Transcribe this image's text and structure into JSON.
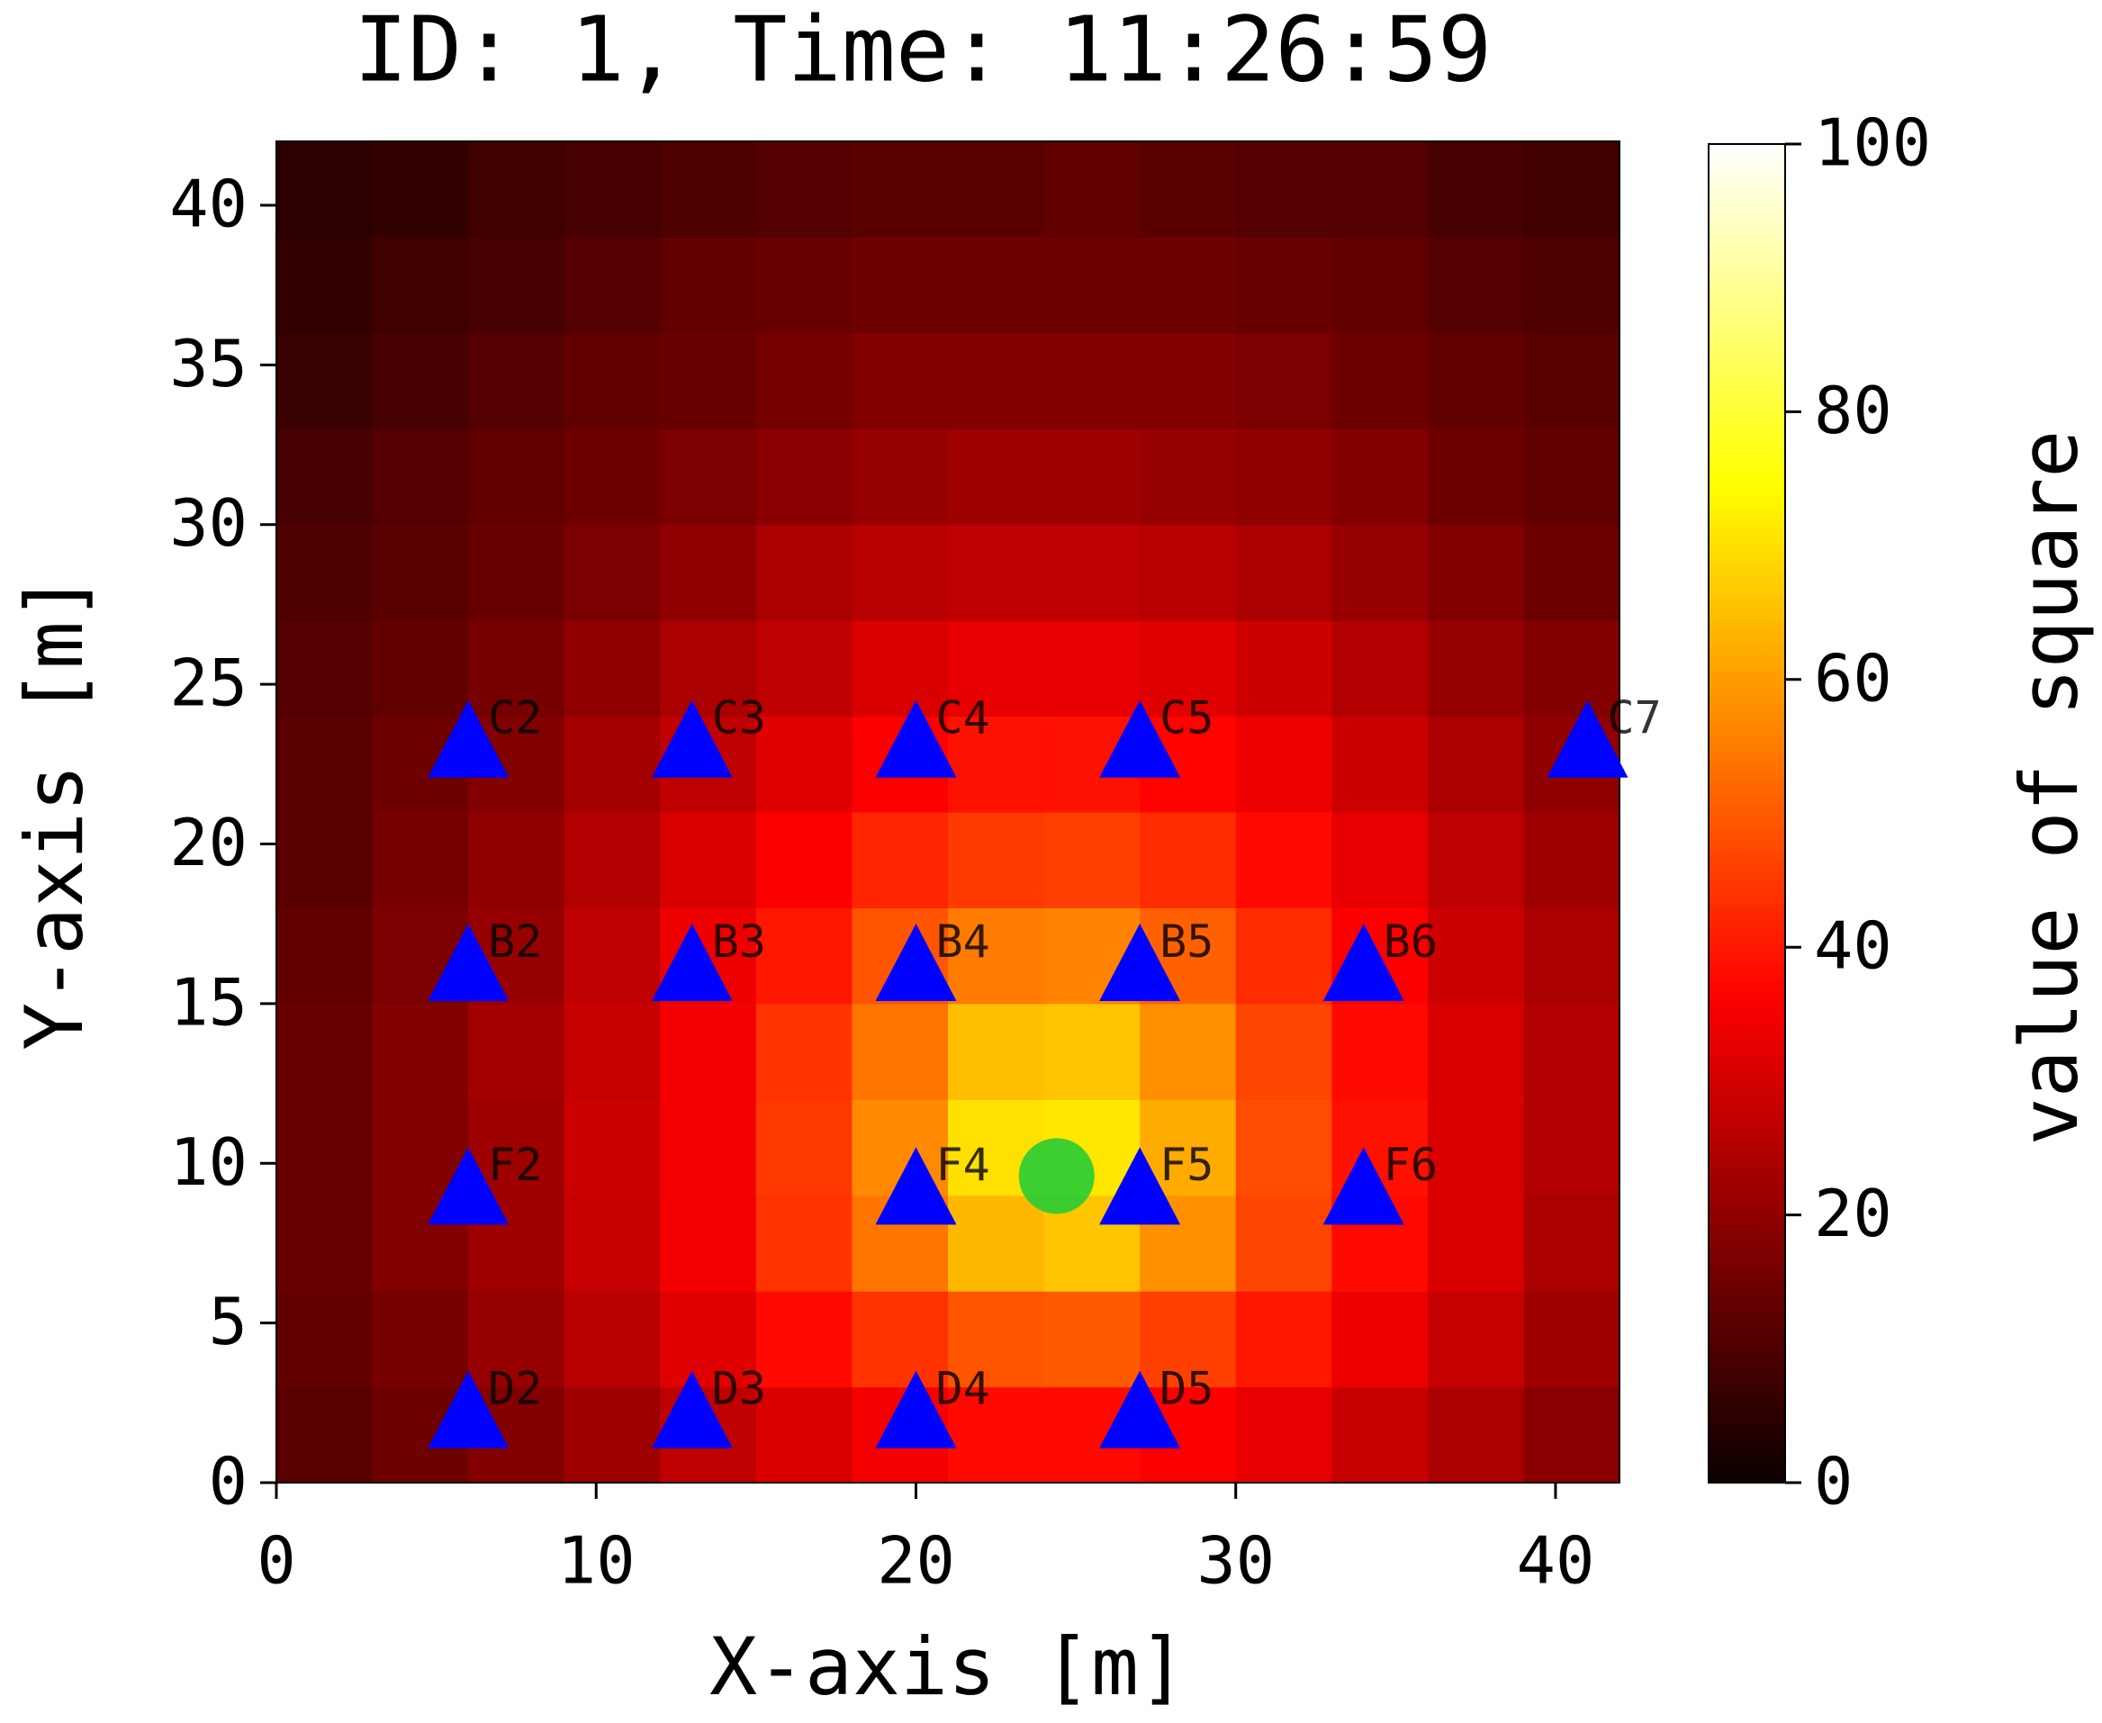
{
  "chart_data": {
    "type": "heatmap",
    "title": "ID: 1, Time: 11:26:59",
    "xlabel": "X-axis [m]",
    "ylabel": "Y-axis [m]",
    "xbins": [
      0,
      3,
      6,
      9,
      12,
      15,
      18,
      21,
      24,
      27,
      30,
      33,
      36,
      39,
      42
    ],
    "ybins": [
      0,
      3,
      6,
      9,
      12,
      15,
      18,
      21,
      24,
      27,
      30,
      33,
      36,
      39,
      42
    ],
    "z": [
      [
        12,
        15,
        18,
        22,
        27,
        31,
        35,
        38,
        38,
        36,
        33,
        28,
        24,
        19
      ],
      [
        13,
        16,
        21,
        26,
        32,
        38,
        44,
        49,
        50,
        46,
        40,
        34,
        28,
        22
      ],
      [
        14,
        18,
        22,
        28,
        35,
        44,
        54,
        64,
        66,
        58,
        47,
        38,
        31,
        24
      ],
      [
        14,
        18,
        22,
        29,
        35,
        45,
        57,
        70,
        71,
        62,
        48,
        39,
        31,
        25
      ],
      [
        14,
        18,
        23,
        28,
        35,
        44,
        54,
        65,
        66,
        58,
        47,
        38,
        31,
        25
      ],
      [
        13,
        17,
        21,
        27,
        34,
        40,
        49,
        55,
        56,
        51,
        43,
        36,
        29,
        24
      ],
      [
        12,
        16,
        20,
        25,
        31,
        36,
        42,
        45,
        46,
        43,
        38,
        33,
        27,
        22
      ],
      [
        12,
        15,
        18,
        23,
        27,
        32,
        36,
        39,
        39,
        37,
        34,
        29,
        24,
        20
      ],
      [
        11,
        13,
        16,
        20,
        24,
        27,
        31,
        33,
        33,
        32,
        29,
        25,
        21,
        18
      ],
      [
        10,
        12,
        14,
        17,
        20,
        24,
        26,
        27,
        27,
        26,
        24,
        21,
        18,
        15
      ],
      [
        9,
        11,
        13,
        15,
        17,
        19,
        21,
        22,
        22,
        21,
        20,
        18,
        15,
        13
      ],
      [
        7,
        9,
        11,
        13,
        14,
        16,
        18,
        18,
        18,
        18,
        17,
        15,
        13,
        12
      ],
      [
        6,
        8,
        9,
        11,
        13,
        14,
        15,
        15,
        15,
        15,
        14,
        13,
        11,
        10
      ],
      [
        5,
        6,
        8,
        9,
        10,
        11,
        12,
        12,
        13,
        12,
        11,
        11,
        9,
        8
      ]
    ],
    "xlim": [
      0,
      42
    ],
    "ylim": [
      0,
      42
    ],
    "xticks": [
      0,
      10,
      20,
      30,
      40
    ],
    "yticks": [
      0,
      5,
      10,
      15,
      20,
      25,
      30,
      35,
      40
    ],
    "colormap": "hot",
    "colorbar": {
      "label": "value of square",
      "lim": [
        0,
        100
      ],
      "ticks": [
        0,
        20,
        40,
        60,
        80,
        100
      ]
    },
    "sensors": {
      "color": "#0000ff",
      "points": [
        {
          "label": "C2",
          "x": 6,
          "y": 23
        },
        {
          "label": "C3",
          "x": 13,
          "y": 23
        },
        {
          "label": "C4",
          "x": 20,
          "y": 23
        },
        {
          "label": "C5",
          "x": 27,
          "y": 23
        },
        {
          "label": "C7",
          "x": 41,
          "y": 23
        },
        {
          "label": "B2",
          "x": 6,
          "y": 16
        },
        {
          "label": "B3",
          "x": 13,
          "y": 16
        },
        {
          "label": "B4",
          "x": 20,
          "y": 16
        },
        {
          "label": "B5",
          "x": 27,
          "y": 16
        },
        {
          "label": "B6",
          "x": 34,
          "y": 16
        },
        {
          "label": "F2",
          "x": 6,
          "y": 9
        },
        {
          "label": "F4",
          "x": 20,
          "y": 9
        },
        {
          "label": "F5",
          "x": 27,
          "y": 9
        },
        {
          "label": "F6",
          "x": 34,
          "y": 9
        },
        {
          "label": "D2",
          "x": 6,
          "y": 2
        },
        {
          "label": "D3",
          "x": 13,
          "y": 2
        },
        {
          "label": "D4",
          "x": 20,
          "y": 2
        },
        {
          "label": "D5",
          "x": 27,
          "y": 2
        }
      ]
    },
    "source": {
      "color": "#33cc33",
      "x": 24.4,
      "y": 9.6
    }
  }
}
